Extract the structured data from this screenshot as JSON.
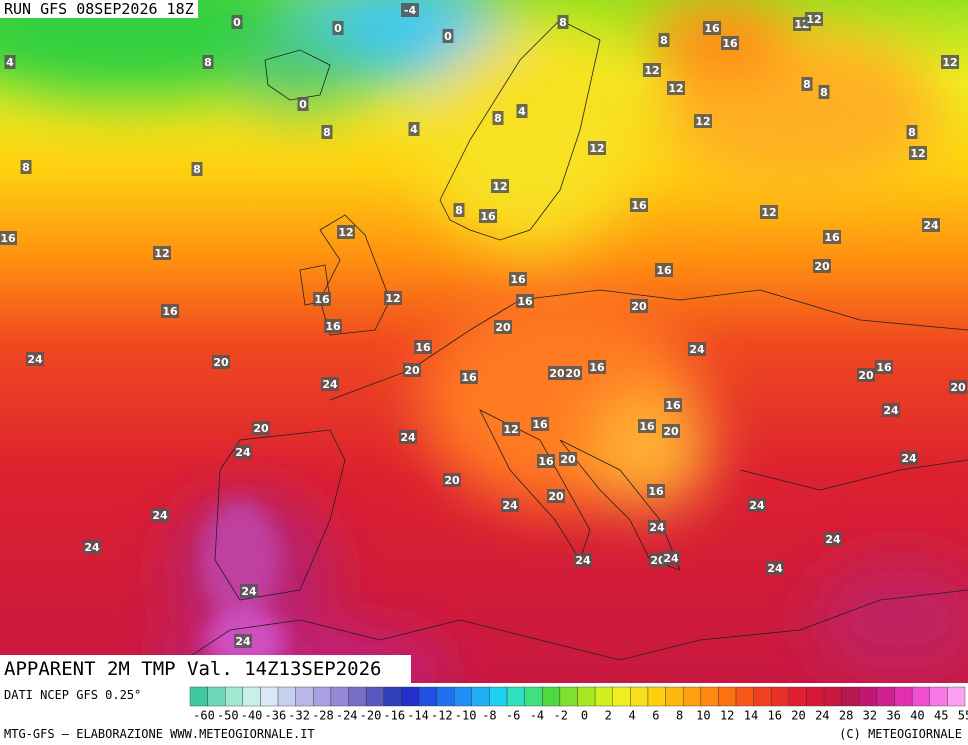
{
  "header": {
    "run": "RUN GFS 08SEP2026 18Z"
  },
  "title": "APPARENT 2M TMP Val. 14Z13SEP2026",
  "source": "DATI NCEP GFS 0.25°",
  "credit_left": "MTG-GFS — ELABORAZIONE WWW.METEOGIORNALE.IT",
  "credit_right": "(C) METEOGIORNALE",
  "colorbar_labels": [
    "-60",
    "-50",
    "-40",
    "-36",
    "-32",
    "-28",
    "-24",
    "-20",
    "-16",
    "-14",
    "-12",
    "-10",
    "-8",
    "-6",
    "-4",
    "-2",
    "0",
    "2",
    "4",
    "6",
    "8",
    "10",
    "12",
    "14",
    "16",
    "20",
    "24",
    "28",
    "32",
    "36",
    "40",
    "45",
    "55"
  ],
  "contour_labels": [
    0,
    0,
    -4,
    0,
    0,
    4,
    8,
    8,
    16,
    16,
    12,
    12,
    8,
    12,
    12,
    12,
    8,
    8,
    8,
    4,
    8,
    4,
    12,
    8,
    12,
    8,
    8,
    12,
    12,
    8,
    16,
    16,
    12,
    24,
    16,
    12,
    16,
    12,
    16,
    16,
    20,
    16,
    12,
    16,
    20,
    16,
    16,
    20,
    24,
    16,
    24,
    20,
    20,
    16,
    20,
    20,
    16,
    20,
    16,
    24,
    20,
    16,
    24,
    12,
    16,
    16,
    20,
    20,
    24,
    24,
    16,
    20,
    24,
    20,
    16,
    20,
    24,
    24,
    24,
    24,
    24,
    24,
    24,
    20,
    24,
    24,
    24,
    24
  ]
}
